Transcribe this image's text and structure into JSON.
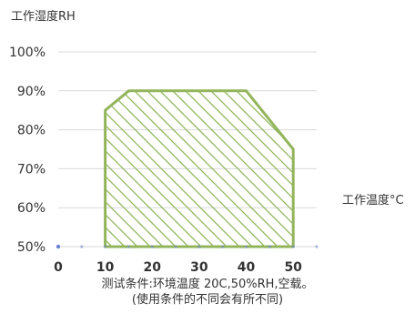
{
  "chart_data": {
    "type": "area",
    "ylabel": "工作湿度RH",
    "xlabel": "工作温度°C",
    "x_ticks": [
      0,
      10,
      20,
      30,
      40,
      50
    ],
    "x_tick_labels": [
      "0",
      "10",
      "20",
      "30",
      "40",
      "50"
    ],
    "y_ticks": [
      50,
      60,
      70,
      80,
      90,
      100
    ],
    "y_tick_labels": [
      "50%",
      "60%",
      "70%",
      "80%",
      "90%",
      "100%"
    ],
    "xlim": [
      0,
      55
    ],
    "ylim": [
      50,
      100
    ],
    "grid": "horizontal",
    "series": [
      {
        "fill": "hatched",
        "points": [
          {
            "x": 10,
            "y": 50
          },
          {
            "x": 10,
            "y": 85
          },
          {
            "x": 15,
            "y": 90
          },
          {
            "x": 40,
            "y": 90
          },
          {
            "x": 50,
            "y": 75
          },
          {
            "x": 50,
            "y": 50
          }
        ]
      }
    ],
    "footnote_lines": [
      "测试条件:环境温度 20C,50%RH,空载。",
      "(使用条件的不同会有所不同)"
    ]
  },
  "colors": {
    "series": "#92b55c",
    "grid": "#d9d9d9",
    "marker": "#6c7fd0"
  }
}
